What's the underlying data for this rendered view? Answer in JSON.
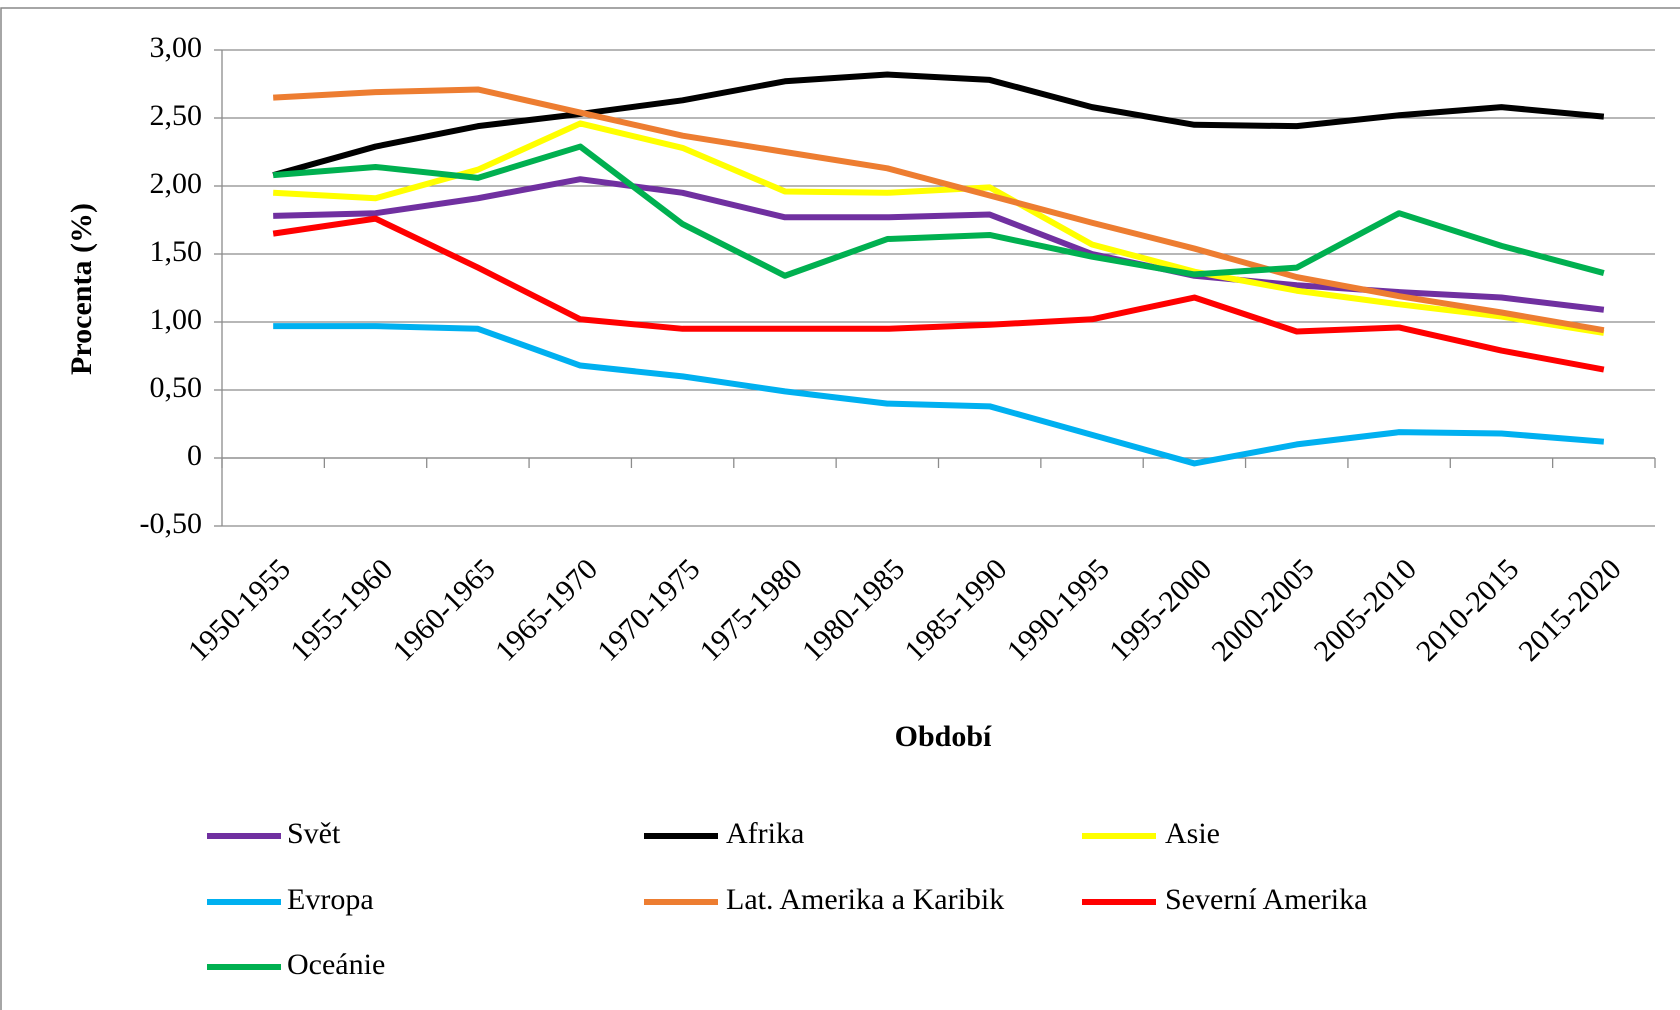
{
  "chart_data": {
    "type": "line",
    "x_label": "Období",
    "y_label": "Procenta (%)",
    "categories": [
      "1950-1955",
      "1955-1960",
      "1960-1965",
      "1965-1970",
      "1970-1975",
      "1975-1980",
      "1980-1985",
      "1985-1990",
      "1990-1995",
      "1995-2000",
      "2000-2005",
      "2005-2010",
      "2010-2015",
      "2015-2020"
    ],
    "ylim": [
      -0.5,
      3.0
    ],
    "yticks": [
      {
        "value": -0.5,
        "label": "-0,50"
      },
      0,
      {
        "value": 0.5,
        "label": "0,50"
      },
      {
        "value": 1.0,
        "label": "1,00"
      },
      {
        "value": 1.5,
        "label": "1,50"
      },
      {
        "value": 2.0,
        "label": "2,00"
      },
      {
        "value": 2.5,
        "label": "2,50"
      },
      {
        "value": 3.0,
        "label": "3,00"
      }
    ],
    "grid": true,
    "legend": "bottom",
    "series": [
      {
        "name": "Svět",
        "color": "#7030a0",
        "values": [
          1.78,
          1.8,
          1.91,
          2.05,
          1.95,
          1.77,
          1.77,
          1.79,
          1.5,
          1.34,
          1.27,
          1.22,
          1.18,
          1.09
        ]
      },
      {
        "name": "Afrika",
        "color": "#000000",
        "values": [
          2.08,
          2.29,
          2.44,
          2.53,
          2.63,
          2.77,
          2.82,
          2.78,
          2.58,
          2.45,
          2.44,
          2.52,
          2.58,
          2.51
        ]
      },
      {
        "name": "Asie",
        "color": "#ffff00",
        "values": [
          1.95,
          1.91,
          2.12,
          2.46,
          2.28,
          1.96,
          1.95,
          1.99,
          1.57,
          1.37,
          1.23,
          1.13,
          1.04,
          0.92
        ]
      },
      {
        "name": "Evropa",
        "color": "#00b0f0",
        "values": [
          0.97,
          0.97,
          0.95,
          0.68,
          0.6,
          0.49,
          0.4,
          0.38,
          0.17,
          -0.04,
          0.1,
          0.19,
          0.18,
          0.12
        ]
      },
      {
        "name": "Lat. Amerika a Karibik",
        "color": "#ed7d31",
        "values": [
          2.65,
          2.69,
          2.71,
          2.54,
          2.37,
          2.25,
          2.13,
          1.93,
          1.73,
          1.54,
          1.33,
          1.19,
          1.07,
          0.94
        ]
      },
      {
        "name": "Severní Amerika",
        "color": "#ff0000",
        "values": [
          1.65,
          1.76,
          1.4,
          1.02,
          0.95,
          0.95,
          0.95,
          0.98,
          1.02,
          1.18,
          0.93,
          0.96,
          0.79,
          0.65
        ]
      },
      {
        "name": "Oceánie",
        "color": "#00b050",
        "values": [
          2.08,
          2.14,
          2.06,
          2.29,
          1.72,
          1.34,
          1.61,
          1.64,
          1.48,
          1.35,
          1.4,
          1.8,
          1.56,
          1.36
        ]
      }
    ]
  }
}
